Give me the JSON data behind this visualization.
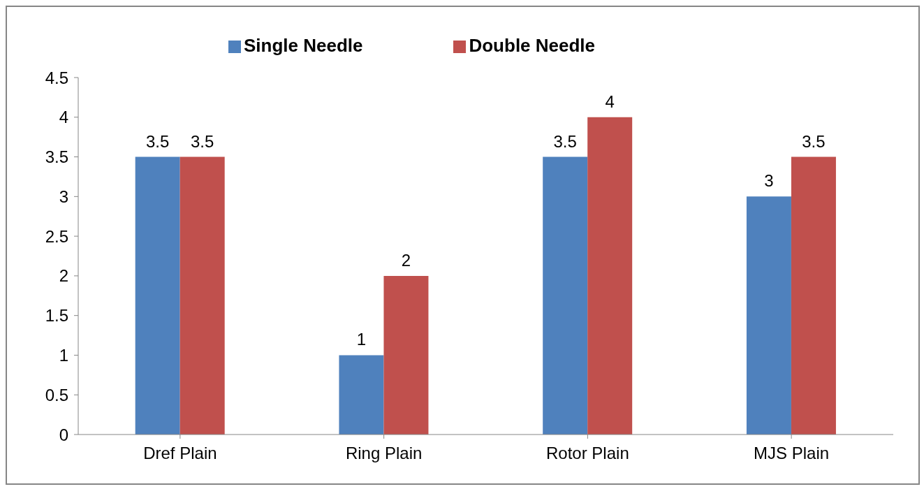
{
  "chart_data": {
    "type": "bar",
    "categories": [
      "Dref Plain",
      "Ring Plain",
      "Rotor Plain",
      "MJS Plain"
    ],
    "series": [
      {
        "name": "Single Needle",
        "color": "#4f81bd",
        "values": [
          3.5,
          1,
          3.5,
          3
        ]
      },
      {
        "name": "Double Needle",
        "color": "#c0504d",
        "values": [
          3.5,
          2,
          4,
          3.5
        ]
      }
    ],
    "ylim": [
      0,
      4.5
    ],
    "yticks": [
      0,
      0.5,
      1,
      1.5,
      2,
      2.5,
      3,
      3.5,
      4,
      4.5
    ],
    "grid": false,
    "legend": "top",
    "data_labels": true
  }
}
